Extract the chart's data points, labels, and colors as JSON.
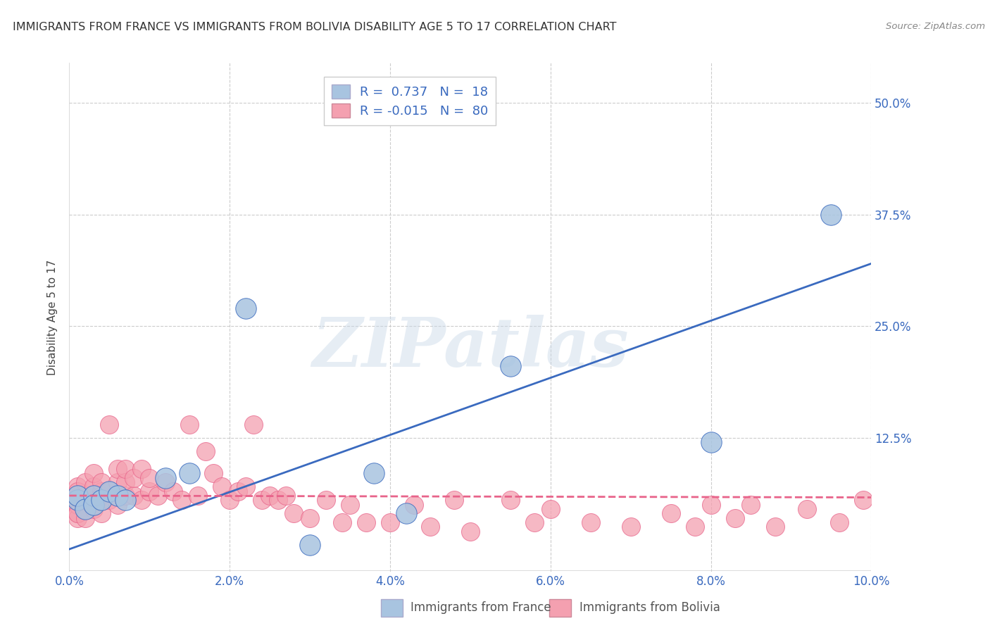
{
  "title": "IMMIGRANTS FROM FRANCE VS IMMIGRANTS FROM BOLIVIA DISABILITY AGE 5 TO 17 CORRELATION CHART",
  "source": "Source: ZipAtlas.com",
  "xlabel_label": "Immigrants from France",
  "ylabel_label": "Disability Age 5 to 17",
  "xlabel2_label": "Immigrants from Bolivia",
  "xlim": [
    0.0,
    0.1
  ],
  "ylim": [
    -0.025,
    0.545
  ],
  "xticks": [
    0.0,
    0.02,
    0.04,
    0.06,
    0.08,
    0.1
  ],
  "xtick_labels": [
    "0.0%",
    "2.0%",
    "4.0%",
    "6.0%",
    "8.0%",
    "10.0%"
  ],
  "yticks": [
    0.0,
    0.125,
    0.25,
    0.375,
    0.5
  ],
  "ytick_labels": [
    "",
    "12.5%",
    "25.0%",
    "37.5%",
    "50.0%"
  ],
  "france_R": 0.737,
  "france_N": 18,
  "bolivia_R": -0.015,
  "bolivia_N": 80,
  "france_color": "#a8c4e0",
  "bolivia_color": "#f4a0b0",
  "france_line_color": "#3a6abf",
  "bolivia_line_color": "#e8638a",
  "watermark": "ZIPatlas",
  "france_line_x": [
    0.0,
    0.1
  ],
  "france_line_y": [
    0.0,
    0.32
  ],
  "bolivia_line_x": [
    0.0,
    0.1
  ],
  "bolivia_line_y": [
    0.06,
    0.058
  ],
  "france_points_x": [
    0.001,
    0.001,
    0.002,
    0.003,
    0.003,
    0.004,
    0.005,
    0.006,
    0.007,
    0.012,
    0.015,
    0.022,
    0.03,
    0.038,
    0.042,
    0.055,
    0.08,
    0.095
  ],
  "france_points_y": [
    0.055,
    0.06,
    0.045,
    0.06,
    0.05,
    0.055,
    0.065,
    0.06,
    0.055,
    0.08,
    0.085,
    0.27,
    0.005,
    0.085,
    0.04,
    0.205,
    0.12,
    0.375
  ],
  "bolivia_points_x": [
    0.001,
    0.001,
    0.001,
    0.001,
    0.001,
    0.001,
    0.001,
    0.001,
    0.002,
    0.002,
    0.002,
    0.002,
    0.002,
    0.003,
    0.003,
    0.003,
    0.003,
    0.003,
    0.004,
    0.004,
    0.004,
    0.004,
    0.004,
    0.005,
    0.005,
    0.005,
    0.006,
    0.006,
    0.006,
    0.007,
    0.007,
    0.007,
    0.008,
    0.008,
    0.009,
    0.009,
    0.01,
    0.01,
    0.011,
    0.012,
    0.013,
    0.014,
    0.015,
    0.016,
    0.017,
    0.018,
    0.019,
    0.02,
    0.021,
    0.022,
    0.023,
    0.024,
    0.025,
    0.026,
    0.027,
    0.028,
    0.03,
    0.032,
    0.034,
    0.035,
    0.037,
    0.04,
    0.043,
    0.045,
    0.048,
    0.05,
    0.055,
    0.058,
    0.06,
    0.065,
    0.07,
    0.075,
    0.078,
    0.08,
    0.083,
    0.085,
    0.088,
    0.092,
    0.096,
    0.099
  ],
  "bolivia_points_y": [
    0.04,
    0.06,
    0.035,
    0.055,
    0.07,
    0.05,
    0.04,
    0.065,
    0.045,
    0.06,
    0.075,
    0.055,
    0.035,
    0.06,
    0.045,
    0.07,
    0.05,
    0.085,
    0.055,
    0.04,
    0.065,
    0.075,
    0.06,
    0.14,
    0.055,
    0.065,
    0.075,
    0.05,
    0.09,
    0.06,
    0.075,
    0.09,
    0.06,
    0.08,
    0.055,
    0.09,
    0.065,
    0.08,
    0.06,
    0.075,
    0.065,
    0.055,
    0.14,
    0.06,
    0.11,
    0.085,
    0.07,
    0.055,
    0.065,
    0.07,
    0.14,
    0.055,
    0.06,
    0.055,
    0.06,
    0.04,
    0.035,
    0.055,
    0.03,
    0.05,
    0.03,
    0.03,
    0.05,
    0.025,
    0.055,
    0.02,
    0.055,
    0.03,
    0.045,
    0.03,
    0.025,
    0.04,
    0.025,
    0.05,
    0.035,
    0.05,
    0.025,
    0.045,
    0.03,
    0.055
  ]
}
